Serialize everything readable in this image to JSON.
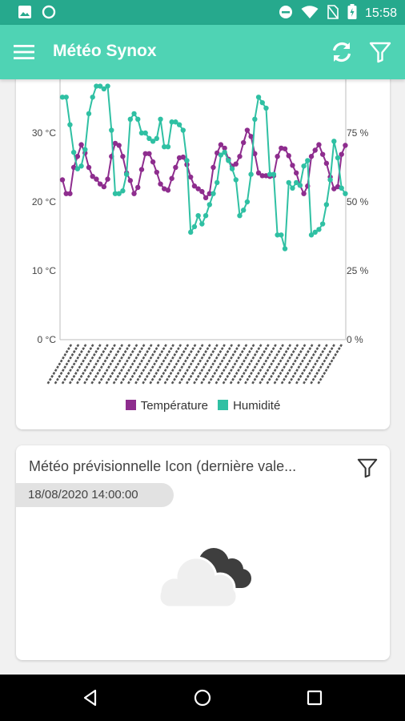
{
  "status_bar": {
    "time": "15:58",
    "icons": [
      "image-icon",
      "circle-icon",
      "minus-circle-icon",
      "wifi-icon",
      "no-sim-icon",
      "battery-icon"
    ]
  },
  "app_bar": {
    "title": "Météo Synox",
    "icons": [
      "menu-icon",
      "refresh-icon",
      "filter-icon"
    ]
  },
  "chart_data": {
    "type": "line",
    "y_left": {
      "ticks": [
        "0 °C",
        "10 °C",
        "20 °C",
        "30 °C"
      ],
      "range": [
        0,
        40
      ]
    },
    "y_right": {
      "ticks": [
        "0 %",
        "25 %",
        "50 %",
        "75 %"
      ],
      "range": [
        0,
        100
      ]
    },
    "legend": [
      "Température",
      "Humidité"
    ],
    "colors": {
      "temperature": "#8e2d8e",
      "humidity": "#2fc0a3"
    },
    "grid": false,
    "series": [
      {
        "name": "Température",
        "axis": "left",
        "values": [
          23.2,
          21.2,
          21.2,
          25,
          26.6,
          28.3,
          27.1,
          25,
          23.7,
          23.3,
          22.6,
          22.2,
          23.3,
          26.6,
          28.5,
          28.2,
          26.6,
          24.2,
          23.1,
          21.2,
          22.1,
          24.7,
          27,
          27,
          25.8,
          24.3,
          22.6,
          21.9,
          21.7,
          23.4,
          25,
          26.4,
          26.5,
          25.4,
          23.6,
          22.3,
          21.9,
          21.5,
          20.6,
          21.2,
          25,
          27.1,
          28.3,
          27.8,
          26.2,
          25.2,
          25.5,
          26.6,
          28.6,
          30.4,
          29.5,
          27,
          24.2,
          23.8,
          23.8,
          23.7,
          23.8,
          26.6,
          27.8,
          27.7,
          26.7,
          25.3,
          24.2,
          22.4,
          21.2,
          22.3,
          26.6,
          27.5,
          28.3,
          26.9,
          25.6,
          23.6,
          21.9,
          22.2,
          26.9,
          28.2
        ]
      },
      {
        "name": "Humidité",
        "axis": "right",
        "values": [
          88,
          88,
          78,
          68,
          62,
          63,
          69,
          82,
          88,
          92,
          92,
          91,
          92,
          76,
          53,
          53,
          54,
          60,
          80,
          82,
          80,
          75,
          75,
          73,
          72,
          73,
          80,
          70,
          70,
          79,
          79,
          78,
          76,
          65,
          39,
          41,
          45,
          42,
          45,
          49,
          53,
          57,
          67,
          68,
          65,
          62,
          58,
          45,
          47,
          50,
          60,
          80,
          88,
          86,
          84,
          60,
          60,
          38,
          38,
          33,
          57,
          55,
          57,
          56,
          63,
          65,
          38,
          39,
          40,
          42,
          49,
          58,
          72,
          66,
          55,
          53
        ]
      }
    ]
  },
  "forecast_card": {
    "title": "Météo prévisionnelle Icon (dernière vale...",
    "timestamp": "18/08/2020 14:00:00",
    "weather_icon": "cloud-icon"
  },
  "nav_bar": {
    "icons": [
      "back-icon",
      "home-icon",
      "recents-icon"
    ]
  }
}
